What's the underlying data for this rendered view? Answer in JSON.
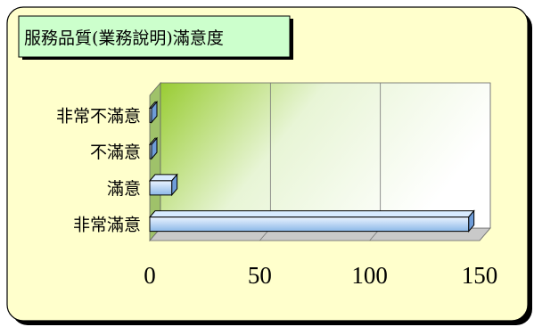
{
  "colors": {
    "panel": "#FFFFCC",
    "panel_border": "#000000",
    "title_box": "#CCFFCC",
    "plot_green_strong": "#99CC33",
    "plot_green_light": "#E8F5D6",
    "bar_light": "#EAF3FF",
    "bar_dark": "#8CB8E8",
    "bar_side": "#6E9CD8",
    "bar_top": "#D8EBFF",
    "axis_text": "#000000"
  },
  "chart_data": {
    "type": "bar",
    "orientation": "horizontal",
    "title": "服務品質(業務說明)滿意度",
    "categories": [
      "非常不滿意",
      "不滿意",
      "滿意",
      "非常滿意"
    ],
    "values": [
      0,
      0,
      10,
      145
    ],
    "xlabel": "",
    "ylabel": "",
    "xlim": [
      0,
      150
    ],
    "x_ticks": [
      "0",
      "50",
      "100",
      "150"
    ],
    "grid": true,
    "legend": "none"
  }
}
